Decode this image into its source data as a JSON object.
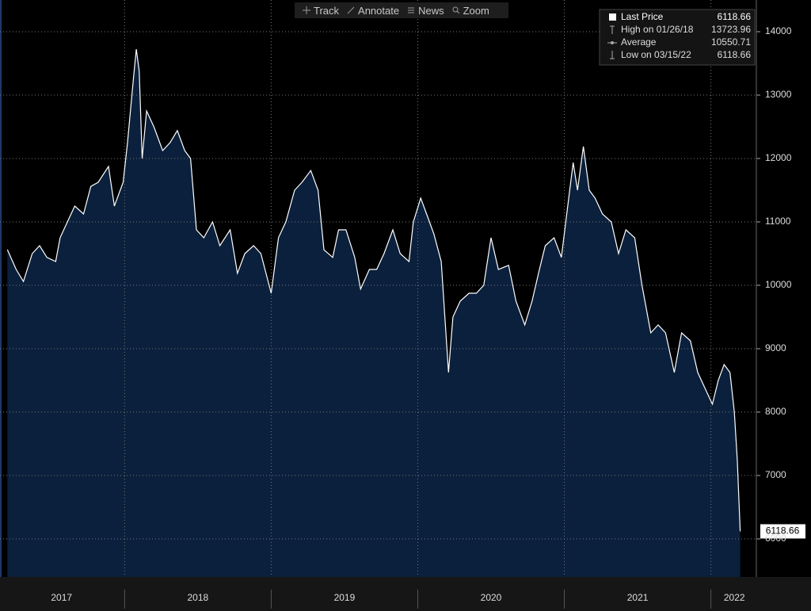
{
  "toolbar": [
    "Track",
    "Annotate",
    "News",
    "Zoom"
  ],
  "chart_data": {
    "type": "area",
    "xlim": [
      2017.15,
      2022.31
    ],
    "ylim": [
      5400,
      14500
    ],
    "yticks": [
      6000,
      7000,
      8000,
      9000,
      10000,
      11000,
      12000,
      13000,
      14000
    ],
    "xticks": [
      {
        "value": 2017.57,
        "label": "2017"
      },
      {
        "value": 2018.5,
        "label": "2018"
      },
      {
        "value": 2019.5,
        "label": "2019"
      },
      {
        "value": 2020.5,
        "label": "2020"
      },
      {
        "value": 2021.5,
        "label": "2021"
      },
      {
        "value": 2022.16,
        "label": "2022"
      }
    ],
    "xseparators": [
      2018,
      2019,
      2020,
      2021,
      2022
    ],
    "grid": true,
    "series": [
      {
        "name": "Last Price",
        "color": "#ffffff",
        "fill": "#0b203c",
        "x": [
          2017.2,
          2017.26,
          2017.31,
          2017.37,
          2017.42,
          2017.47,
          2017.53,
          2017.56,
          2017.61,
          2017.66,
          2017.72,
          2017.77,
          2017.82,
          2017.89,
          2017.93,
          2017.99,
          2018.02,
          2018.06,
          2018.08,
          2018.1,
          2018.12,
          2018.15,
          2018.2,
          2018.26,
          2018.31,
          2018.36,
          2018.41,
          2018.45,
          2018.49,
          2018.54,
          2018.6,
          2018.65,
          2018.72,
          2018.77,
          2018.82,
          2018.88,
          2018.93,
          2019.0,
          2019.05,
          2019.1,
          2019.16,
          2019.21,
          2019.27,
          2019.32,
          2019.36,
          2019.42,
          2019.46,
          2019.51,
          2019.57,
          2019.61,
          2019.67,
          2019.72,
          2019.77,
          2019.83,
          2019.88,
          2019.94,
          2019.97,
          2020.02,
          2020.06,
          2020.11,
          2020.16,
          2020.21,
          2020.24,
          2020.29,
          2020.35,
          2020.4,
          2020.45,
          2020.5,
          2020.55,
          2020.62,
          2020.67,
          2020.73,
          2020.78,
          2020.83,
          2020.87,
          2020.93,
          2020.98,
          2021.03,
          2021.06,
          2021.09,
          2021.13,
          2021.17,
          2021.21,
          2021.26,
          2021.32,
          2021.37,
          2021.42,
          2021.48,
          2021.53,
          2021.59,
          2021.64,
          2021.69,
          2021.75,
          2021.8,
          2021.86,
          2021.91,
          2021.96,
          2022.01,
          2022.05,
          2022.09,
          2022.13,
          2022.16,
          2022.18,
          2022.2
        ],
        "values": [
          10562,
          10250,
          10060,
          10500,
          10625,
          10440,
          10375,
          10750,
          11000,
          11250,
          11125,
          11560,
          11625,
          11875,
          11250,
          11625,
          12250,
          13250,
          13723.96,
          13375,
          12000,
          12750,
          12500,
          12125,
          12250,
          12440,
          12125,
          12000,
          10875,
          10750,
          11000,
          10625,
          10875,
          10190,
          10500,
          10625,
          10500,
          9875,
          10750,
          11000,
          11500,
          11625,
          11810,
          11500,
          10560,
          10440,
          10875,
          10875,
          10440,
          9940,
          10250,
          10250,
          10500,
          10875,
          10500,
          10375,
          11000,
          11375,
          11125,
          10810,
          10375,
          8625,
          9500,
          9750,
          9875,
          9875,
          10000,
          10750,
          10250,
          10315,
          9750,
          9375,
          9750,
          10250,
          10625,
          10750,
          10440,
          11375,
          11935,
          11500,
          12190,
          11500,
          11375,
          11125,
          11000,
          10500,
          10875,
          10750,
          10000,
          9250,
          9375,
          9250,
          8625,
          9250,
          9125,
          8625,
          8375,
          8125,
          8500,
          8750,
          8625,
          8000,
          7250,
          6118.66
        ]
      }
    ],
    "stats": [
      {
        "label": "High on 01/26/18",
        "value": 13723.96
      },
      {
        "label": "Average",
        "value": 10550.71
      },
      {
        "label": "Low on 03/15/22",
        "value": 6118.66
      }
    ]
  }
}
